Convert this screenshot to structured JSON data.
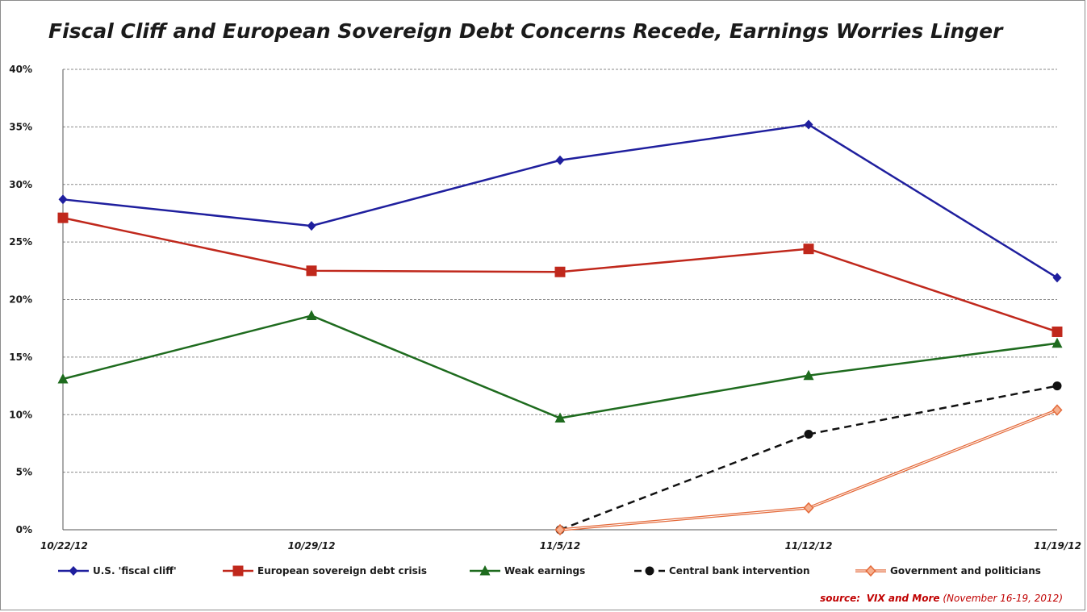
{
  "title": "Fiscal Cliff and European Sovereign Debt Concerns Recede, Earnings Worries Linger",
  "source": {
    "label": "source:",
    "name": "VIX and More",
    "date": "(November 16-19, 2012)"
  },
  "chart_data": {
    "type": "line",
    "title": "Fiscal Cliff and European Sovereign Debt Concerns Recede, Earnings Worries Linger",
    "xlabel": "",
    "ylabel": "",
    "categories": [
      "10/22/12",
      "10/29/12",
      "11/5/12",
      "11/12/12",
      "11/19/12"
    ],
    "ylim": [
      0,
      40
    ],
    "yticks": [
      0,
      5,
      10,
      15,
      20,
      25,
      30,
      35,
      40
    ],
    "ytick_labels": [
      "0%",
      "5%",
      "10%",
      "15%",
      "20%",
      "25%",
      "30%",
      "35%",
      "40%"
    ],
    "grid": "horizontal dashed",
    "legend": "bottom",
    "series": [
      {
        "name": "U.S. 'fiscal cliff'",
        "values": [
          28.7,
          26.4,
          32.1,
          35.2,
          21.9
        ],
        "color": "#1f1f9e",
        "marker": "diamond",
        "dash": "solid"
      },
      {
        "name": "European sovereign debt crisis",
        "values": [
          27.1,
          22.5,
          22.4,
          24.4,
          17.2
        ],
        "color": "#c0281c",
        "marker": "square",
        "dash": "solid"
      },
      {
        "name": "Weak earnings",
        "values": [
          13.1,
          18.6,
          9.7,
          13.4,
          16.2
        ],
        "color": "#1e6b1e",
        "marker": "triangle",
        "dash": "solid"
      },
      {
        "name": "Central bank intervention",
        "values": [
          null,
          null,
          0.0,
          8.3,
          12.5
        ],
        "color": "#111111",
        "marker": "circle",
        "dash": "dashed"
      },
      {
        "name": "Government and politicians",
        "values": [
          null,
          null,
          0.0,
          1.9,
          10.4
        ],
        "color": "#e46a3a",
        "marker": "diamond-open",
        "dash": "double"
      }
    ]
  }
}
